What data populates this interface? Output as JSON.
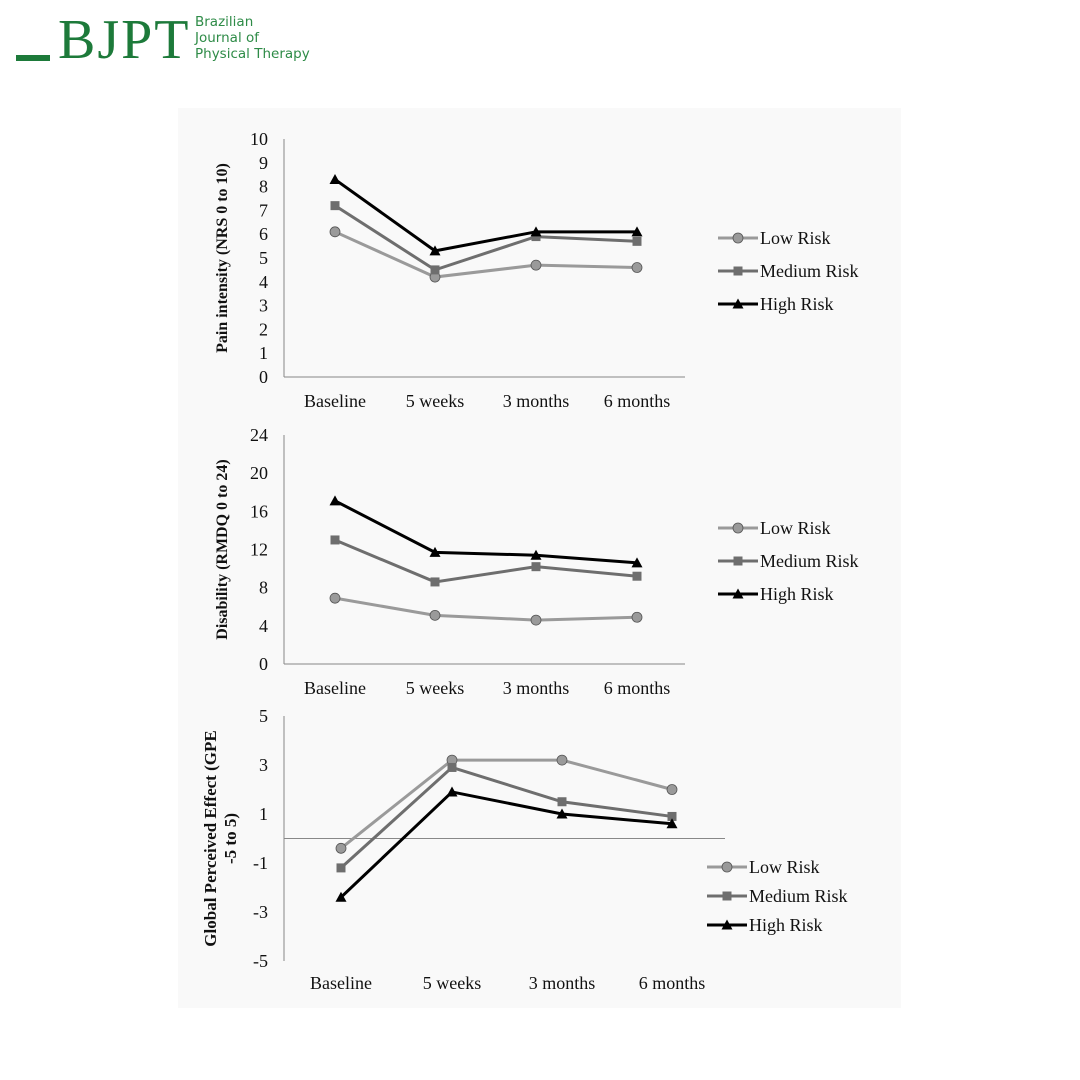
{
  "header": {
    "logo_letters": "BJPT",
    "journal_name_lines": [
      "Brazilian",
      "Journal of",
      "Physical Therapy"
    ],
    "brand_color": "#1d7a3a"
  },
  "series_style": [
    {
      "name": "Low Risk",
      "color": "#9a9a9a",
      "marker": "circle"
    },
    {
      "name": "Medium Risk",
      "color": "#6e6e6e",
      "marker": "square"
    },
    {
      "name": "High Risk",
      "color": "#000000",
      "marker": "triangle"
    }
  ],
  "chart_data": [
    {
      "type": "line",
      "title": "",
      "ylabel": "Pain intensity (NRS 0 to 10)",
      "xlabel": "",
      "categories": [
        "Baseline",
        "5 weeks",
        "3 months",
        "6 months"
      ],
      "ylim": [
        0,
        10
      ],
      "yticks": [
        "0",
        "1",
        "2",
        "3",
        "4",
        "5",
        "6",
        "7",
        "8",
        "9",
        "10"
      ],
      "legend_position": "right",
      "series": [
        {
          "name": "Low Risk",
          "values": [
            6.1,
            4.2,
            4.7,
            4.6
          ]
        },
        {
          "name": "Medium Risk",
          "values": [
            7.2,
            4.5,
            5.9,
            5.7
          ]
        },
        {
          "name": "High Risk",
          "values": [
            8.3,
            5.3,
            6.1,
            6.1
          ]
        }
      ]
    },
    {
      "type": "line",
      "title": "",
      "ylabel": "Disability (RMDQ 0 to 24)",
      "xlabel": "",
      "categories": [
        "Baseline",
        "5 weeks",
        "3 months",
        "6 months"
      ],
      "ylim": [
        0,
        24
      ],
      "yticks": [
        "0",
        "4",
        "8",
        "12",
        "16",
        "20",
        "24"
      ],
      "legend_position": "right",
      "series": [
        {
          "name": "Low Risk",
          "values": [
            6.9,
            5.1,
            4.6,
            4.9
          ]
        },
        {
          "name": "Medium Risk",
          "values": [
            13.0,
            8.6,
            10.2,
            9.2
          ]
        },
        {
          "name": "High Risk",
          "values": [
            17.1,
            11.7,
            11.4,
            10.6
          ]
        }
      ]
    },
    {
      "type": "line",
      "title": "",
      "ylabel_lines": [
        "Global Perceived Effect (GPE",
        "-5 to 5)"
      ],
      "xlabel": "",
      "categories": [
        "Baseline",
        "5 weeks",
        "3 months",
        "6 months"
      ],
      "ylim": [
        -5,
        5
      ],
      "yticks": [
        "-5",
        "-3",
        "-1",
        "1",
        "3",
        "5"
      ],
      "zero_line": true,
      "legend_position": "bottom-right",
      "series": [
        {
          "name": "Low Risk",
          "values": [
            -0.4,
            3.2,
            3.2,
            2.0
          ]
        },
        {
          "name": "Medium Risk",
          "values": [
            -1.2,
            2.9,
            1.5,
            0.9
          ]
        },
        {
          "name": "High Risk",
          "values": [
            -2.4,
            1.9,
            1.0,
            0.6
          ]
        }
      ]
    }
  ]
}
